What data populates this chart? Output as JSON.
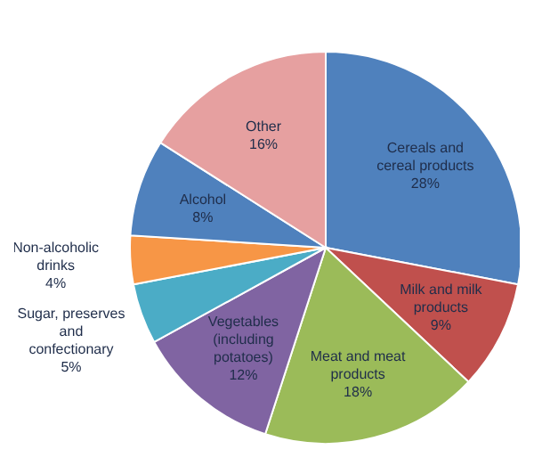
{
  "chart_data": {
    "type": "pie",
    "categories": [
      "Cereals and cereal products",
      "Milk and milk products",
      "Meat and meat products",
      "Vegetables (including potatoes)",
      "Sugar, preserves and confectionary",
      "Non-alcoholic drinks",
      "Alcohol",
      "Other"
    ],
    "values": [
      28,
      9,
      18,
      12,
      5,
      4,
      8,
      16
    ],
    "value_labels": [
      "28%",
      "9%",
      "18%",
      "12%",
      "5%",
      "4%",
      "8%",
      "16%"
    ],
    "colors": [
      "#4f81bd",
      "#c0504d",
      "#9bbb59",
      "#8064a2",
      "#4bacc6",
      "#f79646",
      "#4f81bd",
      "#e6a0a0"
    ],
    "legend": false
  }
}
